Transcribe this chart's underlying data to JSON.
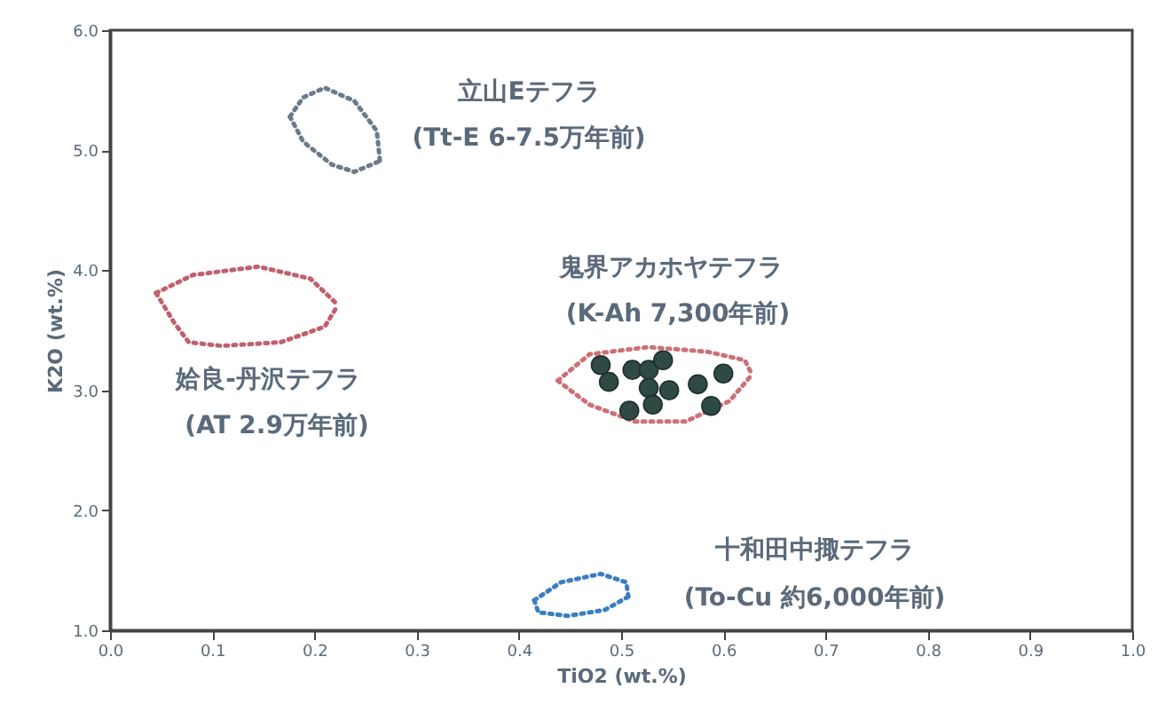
{
  "chart_data": {
    "type": "scatter",
    "xlabel": "TiO2 (wt.%)",
    "ylabel": "K2O (wt.%)",
    "xlim": [
      0,
      1
    ],
    "ylim": [
      1,
      6
    ],
    "xticks": [
      {
        "value": 0,
        "label": "0.0"
      },
      {
        "value": 0.1,
        "label": "0.1"
      },
      {
        "value": 0.2,
        "label": "0.2"
      },
      {
        "value": 0.3,
        "label": "0.3"
      },
      {
        "value": 0.4,
        "label": "0.4"
      },
      {
        "value": 0.5,
        "label": "0.5"
      },
      {
        "value": 0.6,
        "label": "0.6"
      },
      {
        "value": 0.7,
        "label": "0.7"
      },
      {
        "value": 0.8,
        "label": "0.8"
      },
      {
        "value": 0.9,
        "label": "0.9"
      },
      {
        "value": 1,
        "label": "1.0"
      }
    ],
    "yticks": [
      {
        "value": 1,
        "label": "1.0"
      },
      {
        "value": 2,
        "label": "2.0"
      },
      {
        "value": 3,
        "label": "3.0"
      },
      {
        "value": 4,
        "label": "4.0"
      },
      {
        "value": 5,
        "label": "5.0"
      },
      {
        "value": 6,
        "label": "6.0"
      }
    ],
    "grid": false,
    "series": [
      {
        "type": "line",
        "line_style": "dotted",
        "marker": "none",
        "color": "#6b7b8c",
        "x": [
          0.176,
          0.189,
          0.21,
          0.239,
          0.261,
          0.264
        ],
        "values": [
          5.28,
          5.44,
          5.52,
          5.41,
          5.16,
          4.91
        ]
      },
      {
        "type": "line",
        "line_style": "dotted",
        "marker": "none",
        "color": "#6b7b8c",
        "x": [
          0.176,
          0.189,
          0.217,
          0.239,
          0.264
        ],
        "values": [
          5.28,
          5.07,
          4.88,
          4.82,
          4.91
        ]
      },
      {
        "type": "line",
        "line_style": "dotted",
        "marker": "none",
        "color": "#c0606e",
        "x": [
          0.045,
          0.081,
          0.145,
          0.196,
          0.223
        ],
        "values": [
          3.81,
          3.96,
          4.03,
          3.93,
          3.71
        ]
      },
      {
        "type": "line",
        "line_style": "dotted",
        "marker": "none",
        "color": "#c0606e",
        "x": [
          0.045,
          0.063,
          0.077,
          0.109,
          0.167,
          0.21,
          0.223
        ],
        "values": [
          3.81,
          3.56,
          3.4,
          3.37,
          3.4,
          3.53,
          3.71
        ]
      },
      {
        "type": "line",
        "line_style": "dotted",
        "marker": "none",
        "color": "#cc7078",
        "x": [
          0.438,
          0.469,
          0.527,
          0.585,
          0.621,
          0.628
        ],
        "values": [
          3.08,
          3.3,
          3.36,
          3.32,
          3.25,
          3.13
        ]
      },
      {
        "type": "line",
        "line_style": "dotted",
        "marker": "none",
        "color": "#cc7078",
        "x": [
          0.438,
          0.469,
          0.513,
          0.563,
          0.606,
          0.628
        ],
        "values": [
          3.08,
          2.88,
          2.74,
          2.74,
          2.91,
          3.13
        ]
      },
      {
        "type": "line",
        "line_style": "dotted",
        "marker": "none",
        "color": "#3a7ec0",
        "x": [
          0.415,
          0.441,
          0.48,
          0.505,
          0.507
        ],
        "values": [
          1.25,
          1.4,
          1.47,
          1.4,
          1.28
        ]
      },
      {
        "type": "line",
        "line_style": "dotted",
        "marker": "none",
        "color": "#3a7ec0",
        "x": [
          0.415,
          0.419,
          0.448,
          0.484,
          0.507
        ],
        "values": [
          1.25,
          1.15,
          1.12,
          1.17,
          1.28
        ]
      },
      {
        "marker": "circle",
        "color": "#2f4a45",
        "x": [
          0.48,
          0.488,
          0.511,
          0.527,
          0.541,
          0.527,
          0.547,
          0.508,
          0.531,
          0.575,
          0.588,
          0.6
        ],
        "values": [
          3.21,
          3.07,
          3.17,
          3.17,
          3.25,
          3.02,
          3.0,
          2.83,
          2.88,
          3.05,
          2.87,
          3.14
        ]
      }
    ],
    "annotations": [
      "立山Eテフラ",
      "(Tt-E 6-7.5万年前)",
      "鬼界アカホヤテフラ",
      "(K-Ah 7,300年前)",
      "姶良-丹沢テフラ",
      "(AT 2.9万年前)",
      "十和田中掫テフラ",
      "(To-Cu 約6,000年前)"
    ]
  }
}
